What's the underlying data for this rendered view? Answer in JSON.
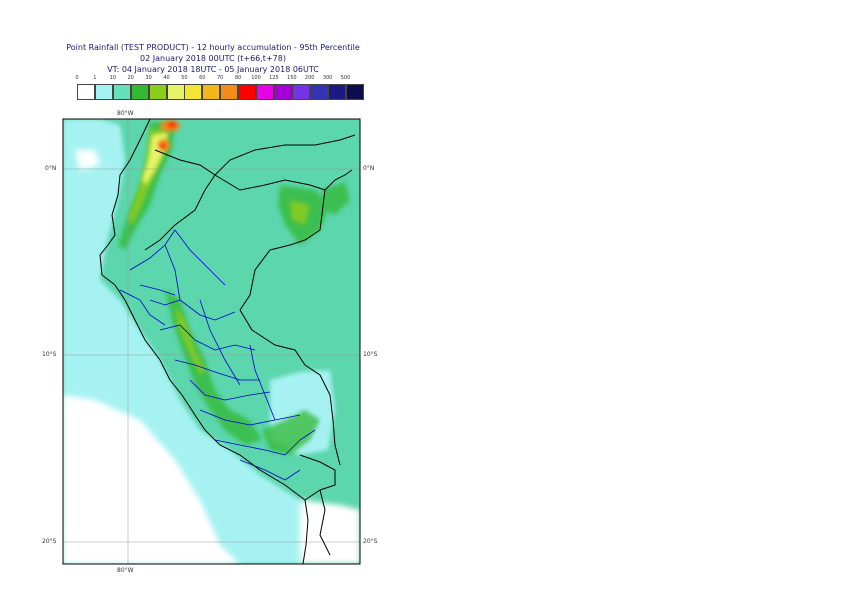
{
  "title": {
    "line1": "Point Rainfall (TEST PRODUCT) - 12 hourly accumulation - 95th Percentile",
    "line2": "02 January 2018 00UTC (t+66,t+78)",
    "line3": "VT: 04 January 2018 18UTC - 05 January 2018 06UTC"
  },
  "legend": {
    "thresholds": [
      "0",
      "1",
      "10",
      "20",
      "30",
      "40",
      "50",
      "60",
      "70",
      "80",
      "100",
      "125",
      "150",
      "200",
      "300",
      "500"
    ],
    "colors": [
      "#ffffff",
      "#a6f2f2",
      "#66e0b8",
      "#33b833",
      "#8ccc1a",
      "#e6f266",
      "#f2e633",
      "#f2b81a",
      "#f28c1a",
      "#ff0000",
      "#e600e6",
      "#a600d9",
      "#7333e6",
      "#3333b3",
      "#1a1a80",
      "#0d0d4d"
    ]
  },
  "map": {
    "graticule": {
      "lon_top": "80°W",
      "lon_bottom": "80°W",
      "lat_right": [
        "0°N",
        "10°S",
        "20°S"
      ],
      "lat_left": [
        "0°N",
        "10°S",
        "20°S"
      ]
    },
    "colors": {
      "land_background": "#5cd6ad",
      "ocean": "#a6f2f2",
      "coast": "#000000",
      "regions": "#0000cc",
      "frame": "#000000"
    }
  }
}
